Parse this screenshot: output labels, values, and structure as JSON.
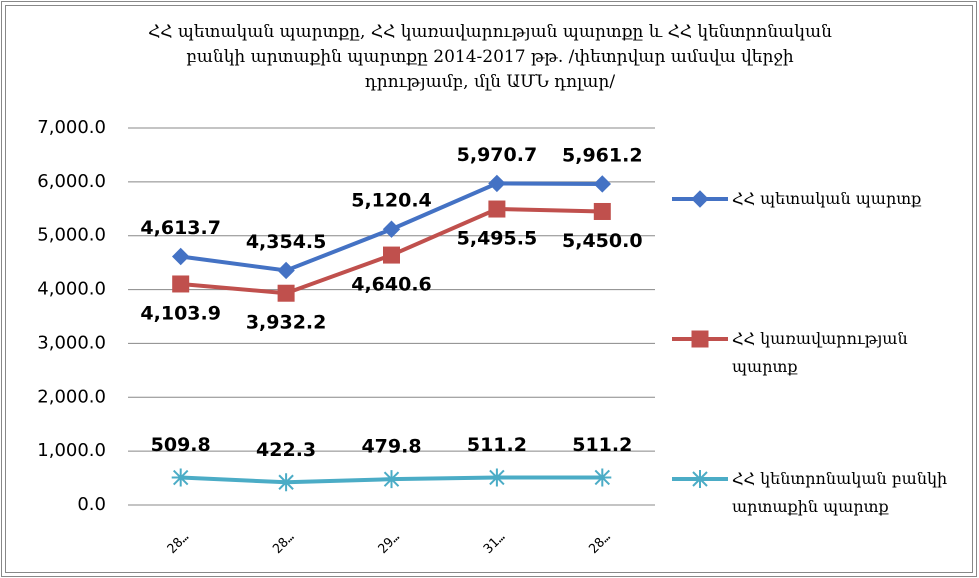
{
  "chart_data": {
    "type": "line",
    "title": "ՀՀ պետական պարտքը, ՀՀ կառավարության պարտքը և ՀՀ կենտրոնական բանկի արտաքին պարտքը 2014-2017 թթ. /փետրվար ամսվա վերջի դրությամբ, մլն ԱՄՆ դոլար/",
    "categories": [
      "28…",
      "28…",
      "29…",
      "31…",
      "28…"
    ],
    "series": [
      {
        "name": "ՀՀ պետական պարտք",
        "color": "#4472c4",
        "marker": "diamond",
        "values": [
          4613.7,
          4354.5,
          5120.4,
          5970.7,
          5961.2
        ],
        "value_labels": [
          "4,613.7",
          "4,354.5",
          "5,120.4",
          "5,970.7",
          "5,961.2"
        ]
      },
      {
        "name": "ՀՀ կառավարության պարտք",
        "color": "#c0504d",
        "marker": "square",
        "values": [
          4103.9,
          3932.2,
          4640.6,
          5495.5,
          5450.0
        ],
        "value_labels": [
          "4,103.9",
          "3,932.2",
          "4,640.6",
          "5,495.5",
          "5,450.0"
        ]
      },
      {
        "name": "ՀՀ կենտրոնական բանկի արտաքին պարտք",
        "color": "#4bacc6",
        "marker": "star",
        "values": [
          509.8,
          422.3,
          479.8,
          511.2,
          511.2
        ],
        "value_labels": [
          "509.8",
          "422.3",
          "479.8",
          "511.2",
          "511.2"
        ]
      }
    ],
    "ylim": [
      0,
      7000
    ],
    "yticks": [
      {
        "value": 0,
        "label": "0.0"
      },
      {
        "value": 1000,
        "label": "1,000.0"
      },
      {
        "value": 2000,
        "label": "2,000.0"
      },
      {
        "value": 3000,
        "label": "3,000.0"
      },
      {
        "value": 4000,
        "label": "4,000.0"
      },
      {
        "value": 5000,
        "label": "5,000.0"
      },
      {
        "value": 6000,
        "label": "6,000.0"
      },
      {
        "value": 7000,
        "label": "7,000.0"
      }
    ],
    "grid": true,
    "legend": "right"
  }
}
